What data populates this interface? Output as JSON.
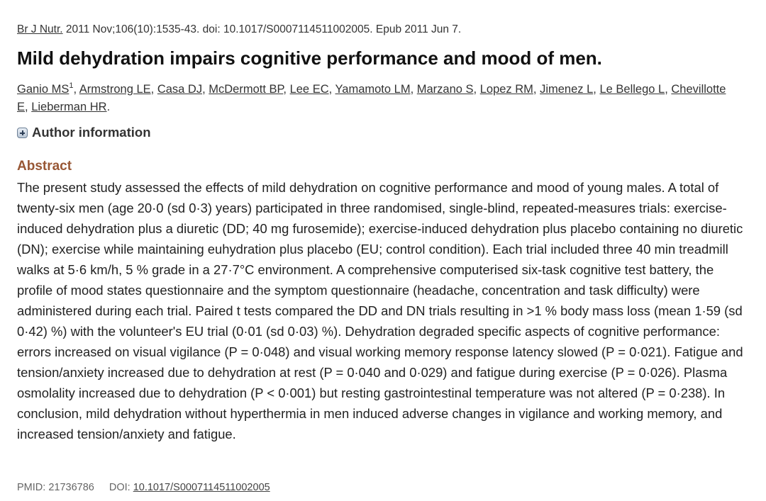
{
  "citation": {
    "journal": "Br J Nutr.",
    "details": " 2011 Nov;106(10):1535-43. doi: 10.1017/S0007114511002005. Epub 2011 Jun 7."
  },
  "title": "Mild dehydration impairs cognitive performance and mood of men.",
  "authors": {
    "list": [
      "Ganio MS",
      "Armstrong LE",
      "Casa DJ",
      "McDermott BP",
      "Lee EC",
      "Yamamoto LM",
      "Marzano S",
      "Lopez RM",
      "Jimenez L",
      "Le Bellego L",
      "Chevillotte E",
      "Lieberman HR"
    ],
    "first_affiliation_sup": "1"
  },
  "author_info": {
    "label": "Author information",
    "icon": "plus-expand-icon"
  },
  "abstract": {
    "heading": "Abstract",
    "text": "The present study assessed the effects of mild dehydration on cognitive performance and mood of young males. A total of twenty-six men (age 20·0 (sd 0·3) years) participated in three randomised, single-blind, repeated-measures trials: exercise-induced dehydration plus a diuretic (DD; 40 mg furosemide); exercise-induced dehydration plus placebo containing no diuretic (DN); exercise while maintaining euhydration plus placebo (EU; control condition). Each trial included three 40 min treadmill walks at 5·6 km/h, 5 % grade in a 27·7°C environment. A comprehensive computerised six-task cognitive test battery, the profile of mood states questionnaire and the symptom questionnaire (headache, concentration and task difficulty) were administered during each trial. Paired t tests compared the DD and DN trials resulting in >1 % body mass loss (mean 1·59 (sd 0·42) %) with the volunteer's EU trial (0·01 (sd 0·03) %). Dehydration degraded specific aspects of cognitive performance: errors increased on visual vigilance (P = 0·048) and visual working memory response latency slowed (P = 0·021). Fatigue and tension/anxiety increased due to dehydration at rest (P = 0·040 and 0·029) and fatigue during exercise (P = 0·026). Plasma osmolality increased due to dehydration (P < 0·001) but resting gastrointestinal temperature was not altered (P = 0·238). In conclusion, mild dehydration without hyperthermia in men induced adverse changes in vigilance and working memory, and increased tension/anxiety and fatigue."
  },
  "ids": {
    "pmid_label": "PMID: ",
    "pmid": "21736786",
    "doi_label": "DOI: ",
    "doi": "10.1017/S0007114511002005"
  },
  "colors": {
    "abstract_heading": "#985735",
    "text": "#222222"
  }
}
